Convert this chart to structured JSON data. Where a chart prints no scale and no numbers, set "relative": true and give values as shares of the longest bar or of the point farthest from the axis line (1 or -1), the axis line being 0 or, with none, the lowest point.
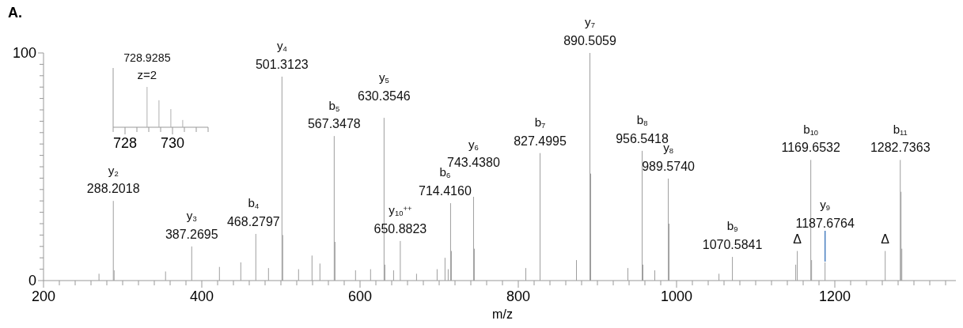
{
  "chart_data": [
    {
      "type": "bar",
      "title": "A.",
      "xlabel": "m/z",
      "color": "#9e9e9e",
      "x": [
        270.1,
        288.2018,
        289.2,
        354.2,
        387.2695,
        422.3,
        449.3,
        468.2797,
        484.3,
        501.3123,
        502.3,
        522.3,
        539.3,
        549.3,
        567.3478,
        568.35,
        594.3,
        613.3,
        630.3546,
        631.4,
        642.4,
        650.8823,
        671.4,
        697.4,
        707.4,
        711.4,
        714.416,
        715.4,
        743.438,
        744.4,
        809.5,
        827.4995,
        873.5,
        890.5059,
        891.5,
        938.5,
        956.5418,
        957.5,
        972.5,
        989.574,
        990.58,
        1053.6,
        1070.5841,
        1150.6,
        1152.6,
        1169.6532,
        1170.65,
        1187.6764,
        1263.7,
        1282.7363,
        1283.7,
        1284.7
      ],
      "values": [
        3,
        35,
        4.5,
        4,
        15,
        6,
        8,
        20.5,
        5.5,
        89.6,
        20,
        5,
        11,
        7.5,
        63.5,
        17,
        4.5,
        5,
        71.5,
        7,
        4.5,
        17.4,
        3,
        5,
        10,
        5,
        34,
        13,
        36.8,
        14,
        5.5,
        56,
        9,
        100,
        47,
        5.5,
        57,
        7,
        4.5,
        44.8,
        25,
        3,
        10.4,
        7,
        13,
        53,
        9,
        8,
        13,
        53,
        39,
        14
      ],
      "xlim": [
        200,
        1360
      ],
      "xticks": [
        200,
        {
          "value": 220,
          "label": null
        },
        {
          "value": 240,
          "label": null
        },
        {
          "value": 260,
          "label": null
        },
        {
          "value": 280,
          "label": null
        },
        {
          "value": 300,
          "label": null
        },
        {
          "value": 320,
          "label": null
        },
        {
          "value": 340,
          "label": null
        },
        {
          "value": 360,
          "label": null
        },
        {
          "value": 380,
          "label": null
        },
        400,
        {
          "value": 420,
          "label": null
        },
        {
          "value": 440,
          "label": null
        },
        {
          "value": 460,
          "label": null
        },
        {
          "value": 480,
          "label": null
        },
        {
          "value": 500,
          "label": null
        },
        {
          "value": 520,
          "label": null
        },
        {
          "value": 540,
          "label": null
        },
        {
          "value": 560,
          "label": null
        },
        {
          "value": 580,
          "label": null
        },
        600,
        {
          "value": 620,
          "label": null
        },
        {
          "value": 640,
          "label": null
        },
        {
          "value": 660,
          "label": null
        },
        {
          "value": 680,
          "label": null
        },
        {
          "value": 700,
          "label": null
        },
        {
          "value": 720,
          "label": null
        },
        {
          "value": 740,
          "label": null
        },
        {
          "value": 760,
          "label": null
        },
        {
          "value": 780,
          "label": null
        },
        800,
        {
          "value": 820,
          "label": null
        },
        {
          "value": 840,
          "label": null
        },
        {
          "value": 860,
          "label": null
        },
        {
          "value": 880,
          "label": null
        },
        {
          "value": 900,
          "label": null
        },
        {
          "value": 920,
          "label": null
        },
        {
          "value": 940,
          "label": null
        },
        {
          "value": 960,
          "label": null
        },
        {
          "value": 980,
          "label": null
        },
        1000,
        {
          "value": 1020,
          "label": null
        },
        {
          "value": 1040,
          "label": null
        },
        {
          "value": 1060,
          "label": null
        },
        {
          "value": 1080,
          "label": null
        },
        {
          "value": 1100,
          "label": null
        },
        {
          "value": 1120,
          "label": null
        },
        {
          "value": 1140,
          "label": null
        },
        {
          "value": 1160,
          "label": null
        },
        {
          "value": 1180,
          "label": null
        },
        1200,
        {
          "value": 1220,
          "label": null
        },
        {
          "value": 1240,
          "label": null
        },
        {
          "value": 1260,
          "label": null
        },
        {
          "value": 1280,
          "label": null
        },
        {
          "value": 1300,
          "label": null
        },
        {
          "value": 1320,
          "label": null
        },
        {
          "value": 1340,
          "label": null
        },
        {
          "value": 1360,
          "label": null
        }
      ],
      "ylim": [
        0,
        100
      ],
      "yticks": [
        0,
        {
          "value": 5,
          "label": null
        },
        {
          "value": 10,
          "label": null
        },
        {
          "value": 15,
          "label": null
        },
        {
          "value": 20,
          "label": null
        },
        {
          "value": 25,
          "label": null
        },
        {
          "value": 30,
          "label": null
        },
        {
          "value": 35,
          "label": null
        },
        {
          "value": 40,
          "label": null
        },
        {
          "value": 45,
          "label": null
        },
        {
          "value": 50,
          "label": null
        },
        {
          "value": 55,
          "label": null
        },
        {
          "value": 60,
          "label": null
        },
        {
          "value": 65,
          "label": null
        },
        {
          "value": 70,
          "label": null
        },
        {
          "value": 75,
          "label": null
        },
        {
          "value": 80,
          "label": null
        },
        {
          "value": 85,
          "label": null
        },
        {
          "value": 90,
          "label": null
        },
        {
          "value": 95,
          "label": null
        },
        100
      ],
      "annotations": [
        {
          "text": "y$_{2}$\n288.2018",
          "x": 288.2018,
          "y": 35
        },
        {
          "text": "y$_{3}$\n387.2695",
          "x": 387.2695,
          "y": 15
        },
        {
          "text": "b$_{4}$\n468.2797",
          "x": 468.2797,
          "y": 20.5
        },
        {
          "text": "y$_{4}$\n501.3123",
          "x": 501.3123,
          "y": 89.6
        },
        {
          "text": "b$_{5}$\n567.3478",
          "x": 567.3478,
          "y": 63.5
        },
        {
          "text": "y$_{5}$\n630.3546",
          "x": 630.3546,
          "y": 71.5
        },
        {
          "text": "y$_{10}$$^{++}$\n650.8823",
          "x": 650.8823,
          "y": 17.4
        },
        {
          "text": "b$_{6}$\n714.4160",
          "x": 714.416,
          "y": 34
        },
        {
          "text": "y$_{6}$\n743.4380",
          "x": 743.438,
          "y": 36.8
        },
        {
          "text": "b$_{7}$\n827.4995",
          "x": 827.4995,
          "y": 56
        },
        {
          "text": "y$_{7}$\n890.5059",
          "x": 890.5059,
          "y": 100
        },
        {
          "text": "b$_{8}$\n956.5418",
          "x": 956.5418,
          "y": 57
        },
        {
          "text": "y$_{8}$\n989.5740",
          "x": 989.574,
          "y": 44.8
        },
        {
          "text": "b$_{9}$\n1070.5841",
          "x": 1070.5841,
          "y": 10.4
        },
        {
          "text": "Δ",
          "x": 1152.6,
          "y": 13
        },
        {
          "text": "b$_{10}$\n1169.6532",
          "x": 1169.6532,
          "y": 53
        },
        {
          "text": "y$_{9}$\n1187.6764",
          "x": 1187.6764,
          "y": 8
        },
        {
          "text": "Δ",
          "x": 1263.7,
          "y": 13
        },
        {
          "text": "b$_{11}$\n1282.7363",
          "x": 1282.7363,
          "y": 53
        }
      ]
    },
    {
      "type": "bar",
      "relative": true,
      "color": "#b0b0b0",
      "x": [
        728.9285,
        729.43,
        729.93,
        730.43
      ],
      "values": [
        1,
        0.67,
        0.45,
        0.18
      ],
      "xlim": [
        727.5,
        731.5
      ],
      "xticks": [
        {
          "value": 727.5,
          "label": null
        },
        728,
        {
          "value": 728.5,
          "label": null
        },
        {
          "value": 729,
          "label": null
        },
        {
          "value": 729.5,
          "label": null
        },
        730,
        {
          "value": 730.5,
          "label": null
        },
        {
          "value": 731,
          "label": null
        },
        {
          "value": 731.5,
          "label": null
        }
      ],
      "annotations": [
        {
          "text": "728.9285\nz=2",
          "x": 728.9285,
          "y": 1
        }
      ]
    }
  ]
}
